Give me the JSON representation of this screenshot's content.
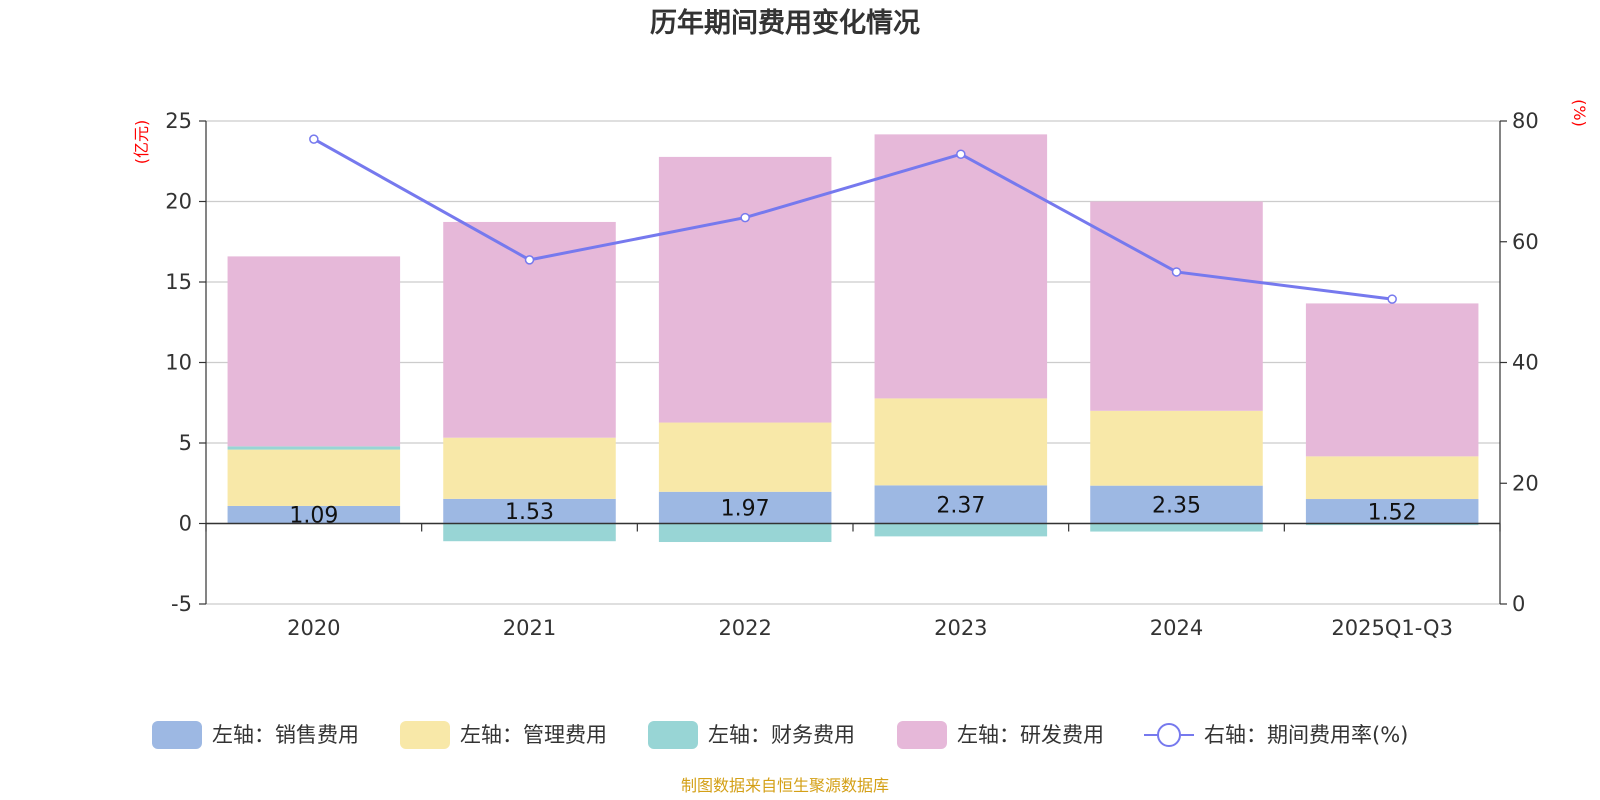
{
  "chart_data": {
    "type": "bar",
    "title": "历年期间费用变化情况",
    "categories": [
      "2020",
      "2021",
      "2022",
      "2023",
      "2024",
      "2025Q1-Q3"
    ],
    "left_axis": {
      "unit": "(亿元)",
      "ylim": [
        -5,
        25
      ],
      "ticks": [
        25,
        20,
        15,
        10,
        5,
        0,
        -5
      ]
    },
    "right_axis": {
      "unit": "(%)",
      "ylim": [
        0,
        80
      ],
      "ticks": [
        80,
        60,
        40,
        20,
        0
      ]
    },
    "series": [
      {
        "name": "左轴：销售费用",
        "axis": "left",
        "color": "#9db8e3",
        "values": [
          1.09,
          1.53,
          1.97,
          2.37,
          2.35,
          1.52
        ],
        "labels": [
          "1.09",
          "1.53",
          "1.97",
          "2.37",
          "2.35",
          "1.52"
        ]
      },
      {
        "name": "左轴：管理费用",
        "axis": "left",
        "color": "#f8e8a8",
        "values": [
          3.5,
          3.8,
          4.3,
          5.4,
          4.65,
          2.65
        ]
      },
      {
        "name": "左轴：财务费用",
        "axis": "left",
        "color": "#98d5d5",
        "values": [
          0.2,
          -1.1,
          -1.15,
          -0.8,
          -0.5,
          -0.1
        ]
      },
      {
        "name": "左轴：研发费用",
        "axis": "left",
        "color": "#e6b8d9",
        "values": [
          11.8,
          13.4,
          16.5,
          16.4,
          13.0,
          9.5
        ]
      },
      {
        "name": "右轴：期间费用率(%)",
        "axis": "right",
        "type": "line",
        "color": "#7679ee",
        "values": [
          77.0,
          57.0,
          64.0,
          74.5,
          55.0,
          50.5
        ]
      }
    ],
    "grid": true,
    "legend": "bottom"
  },
  "footer": {
    "source": "制图数据来自恒生聚源数据库"
  }
}
